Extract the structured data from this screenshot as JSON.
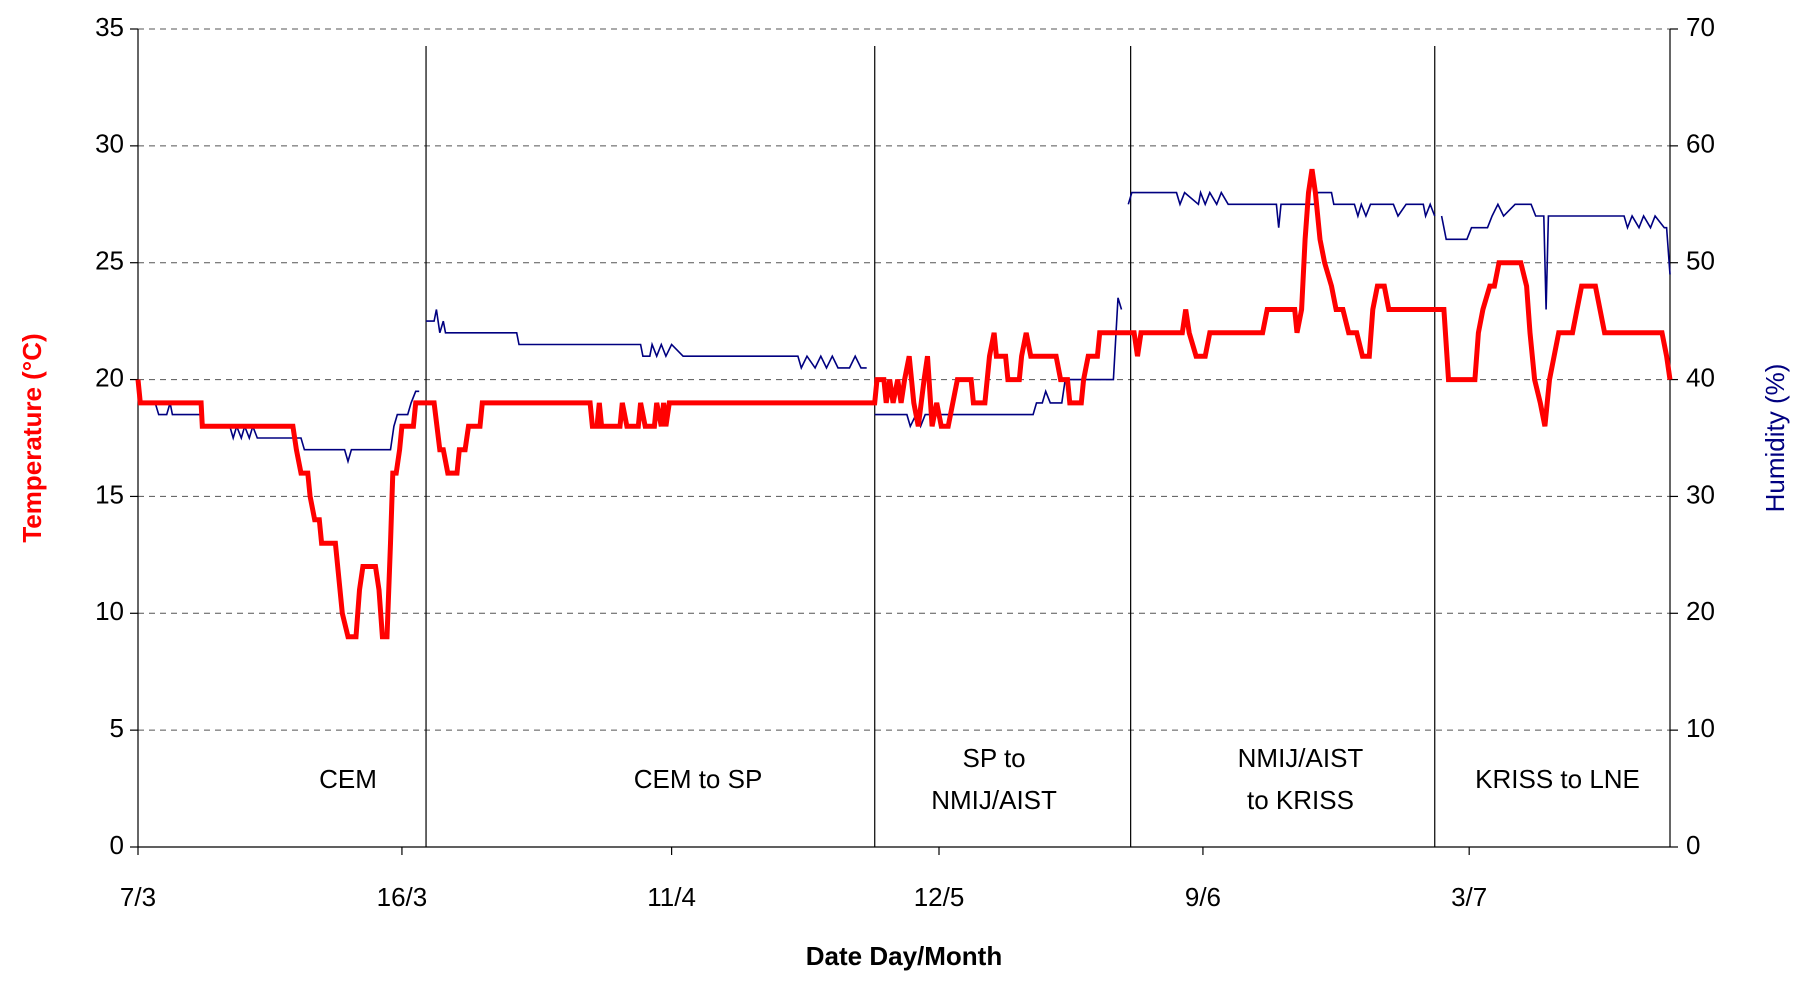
{
  "chart_data": {
    "type": "line",
    "xlabel": "Date  Day/Month",
    "ylabel": "Temperature (°C)",
    "y2label": "Humidity (%)",
    "xlim": [
      120,
      1455
    ],
    "xticks": [
      {
        "value": 120,
        "label": "7/3"
      },
      {
        "value": 350,
        "label": "16/3"
      },
      {
        "value": 585,
        "label": "11/4"
      },
      {
        "value": 818,
        "label": "12/5"
      },
      {
        "value": 1048,
        "label": "9/6"
      },
      {
        "value": 1280,
        "label": "3/7"
      }
    ],
    "ylim": [
      0,
      35
    ],
    "yticks": [
      0,
      5,
      10,
      15,
      20,
      25,
      30,
      35
    ],
    "y2lim": [
      0,
      70
    ],
    "y2ticks": [
      0,
      10,
      20,
      30,
      40,
      50,
      60,
      70
    ],
    "grid": true,
    "dividers": [
      371,
      762,
      985,
      1250
    ],
    "annotations": [
      {
        "x": 303,
        "text": [
          "CEM"
        ]
      },
      {
        "x": 608,
        "text": [
          "CEM to SP"
        ]
      },
      {
        "x": 866,
        "text": [
          "SP to",
          "NMIJ/AIST"
        ]
      },
      {
        "x": 1133,
        "text": [
          "NMIJ/AIST",
          "to KRISS"
        ]
      },
      {
        "x": 1357,
        "text": [
          "KRISS to LNE"
        ]
      }
    ],
    "series": [
      {
        "name": "Temperature",
        "color": "#ff0000",
        "axis": "y",
        "x": [
          120,
          122,
          175,
          176,
          255,
          258,
          262,
          268,
          270,
          274,
          278,
          280,
          292,
          296,
          298,
          303,
          310,
          313,
          316,
          327,
          330,
          333,
          337,
          340,
          342,
          345,
          348,
          350,
          360,
          362,
          370,
          378,
          383,
          386,
          390,
          398,
          400,
          405,
          408,
          418,
          420,
          514,
          516,
          520,
          522,
          524,
          540,
          542,
          546,
          556,
          558,
          562,
          570,
          572,
          576,
          578,
          580,
          583,
          762,
          764,
          770,
          772,
          775,
          778,
          782,
          785,
          788,
          792,
          796,
          800,
          805,
          808,
          812,
          816,
          820,
          826,
          830,
          834,
          846,
          848,
          858,
          862,
          866,
          868,
          876,
          878,
          888,
          890,
          894,
          898,
          920,
          924,
          930,
          932,
          942,
          944,
          948,
          956,
          958,
          985,
          988,
          991,
          994,
          1030,
          1033,
          1036,
          1042,
          1050,
          1054,
          1100,
          1104,
          1128,
          1130,
          1134,
          1137,
          1140,
          1143,
          1146,
          1150,
          1154,
          1160,
          1164,
          1170,
          1175,
          1182,
          1187,
          1193,
          1196,
          1200,
          1206,
          1210,
          1250,
          1258,
          1262,
          1285,
          1288,
          1292,
          1298,
          1302,
          1306,
          1325,
          1330,
          1333,
          1337,
          1342,
          1346,
          1350,
          1354,
          1358,
          1370,
          1374,
          1378,
          1390,
          1394,
          1398,
          1448,
          1452,
          1455
        ],
        "values": [
          20,
          19,
          19,
          18,
          18,
          17,
          16,
          16,
          15,
          14,
          14,
          13,
          13,
          11,
          10,
          9,
          9,
          11,
          12,
          12,
          11,
          9,
          9,
          13,
          16,
          16,
          17,
          18,
          18,
          19,
          19,
          19,
          17,
          17,
          16,
          16,
          17,
          17,
          18,
          18,
          19,
          19,
          18,
          18,
          19,
          18,
          18,
          19,
          18,
          18,
          19,
          18,
          18,
          19,
          18,
          19,
          18,
          19,
          19,
          20,
          20,
          19,
          20,
          19,
          20,
          19,
          20,
          21,
          19,
          18,
          20,
          21,
          18,
          19,
          18,
          18,
          19,
          20,
          20,
          19,
          19,
          21,
          22,
          21,
          21,
          20,
          20,
          21,
          22,
          21,
          21,
          20,
          20,
          19,
          19,
          20,
          21,
          21,
          22,
          22,
          22,
          21,
          22,
          22,
          23,
          22,
          21,
          21,
          22,
          22,
          23,
          23,
          22,
          23,
          26,
          28,
          29,
          28,
          26,
          25,
          24,
          23,
          23,
          22,
          22,
          21,
          21,
          23,
          24,
          24,
          23,
          23,
          23,
          20,
          20,
          22,
          23,
          24,
          24,
          25,
          25,
          24,
          22,
          20,
          19,
          18,
          20,
          21,
          22,
          22,
          23,
          24,
          24,
          23,
          22,
          22,
          21,
          20
        ]
      },
      {
        "name": "Humidity",
        "color": "#000080",
        "axis": "y2",
        "x": [
          120,
          122,
          135,
          138,
          145,
          148,
          150,
          175,
          178,
          200,
          203,
          206,
          210,
          213,
          217,
          220,
          224,
          262,
          265,
          300,
          303,
          306,
          340,
          343,
          346,
          355,
          358,
          362,
          365,
          368,
          371,
          378,
          380,
          383,
          386,
          388,
          450,
          452,
          455,
          558,
          560,
          566,
          568,
          572,
          576,
          580,
          585,
          595,
          695,
          698,
          703,
          710,
          715,
          720,
          725,
          730,
          740,
          745,
          750,
          755,
          758,
          762,
          790,
          793,
          798,
          802,
          806,
          900,
          903,
          908,
          911,
          915,
          925,
          928,
          970,
          974,
          977,
          980,
          983,
          986,
          1025,
          1028,
          1032,
          1044,
          1046,
          1050,
          1054,
          1060,
          1064,
          1070,
          1112,
          1114,
          1116,
          1145,
          1148,
          1160,
          1162,
          1180,
          1183,
          1186,
          1190,
          1194,
          1214,
          1218,
          1225,
          1240,
          1242,
          1246,
          1250,
          1253,
          1256,
          1260,
          1278,
          1282,
          1296,
          1300,
          1305,
          1310,
          1320,
          1334,
          1338,
          1345,
          1347,
          1349,
          1415,
          1418,
          1422,
          1428,
          1432,
          1438,
          1442,
          1450,
          1452,
          1455
        ],
        "values": [
          39,
          38,
          38,
          37,
          37,
          38,
          37,
          37,
          36,
          36,
          35,
          36,
          35,
          36,
          35,
          36,
          35,
          35,
          34,
          34,
          33,
          34,
          34,
          36,
          37,
          37,
          38,
          39,
          39,
          null,
          45,
          45,
          46,
          44,
          45,
          44,
          44,
          43,
          43,
          43,
          42,
          42,
          43,
          42,
          43,
          42,
          43,
          42,
          42,
          41,
          42,
          41,
          42,
          41,
          42,
          41,
          41,
          42,
          41,
          41,
          null,
          37,
          37,
          36,
          37,
          36,
          37,
          37,
          38,
          38,
          39,
          38,
          38,
          40,
          40,
          47,
          46,
          null,
          55,
          56,
          56,
          55,
          56,
          55,
          56,
          55,
          56,
          55,
          56,
          55,
          55,
          53,
          55,
          55,
          56,
          56,
          55,
          55,
          54,
          55,
          54,
          55,
          55,
          54,
          55,
          55,
          54,
          55,
          54,
          null,
          54,
          52,
          52,
          53,
          53,
          54,
          55,
          54,
          55,
          55,
          54,
          54,
          46,
          54,
          54,
          53,
          54,
          53,
          54,
          53,
          54,
          53,
          53,
          49
        ]
      }
    ]
  }
}
